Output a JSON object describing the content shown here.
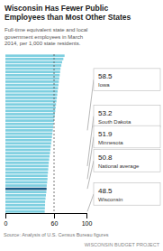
{
  "chart_data": {
    "type": "bar",
    "orientation": "horizontal",
    "title": "Wisconsin Has Fewer Public\nEmployees than Most Other States",
    "subtitle": "Full-time equivalent state and local\ngovernment employees in March\n2014, per 1,000 state residents.",
    "source": "Source: Analysis of U.S. Census Bureau figures",
    "credit": "WISCONSIN BUDGET PROJECT",
    "categories": [
      null,
      null,
      null,
      null,
      null,
      null,
      null,
      null,
      null,
      null,
      null,
      null,
      null,
      null,
      null,
      null,
      null,
      null,
      null,
      null,
      null,
      null,
      null,
      null,
      null,
      null,
      null,
      null,
      null,
      null,
      null,
      null,
      null,
      null,
      null,
      null,
      null,
      null,
      null,
      null,
      null,
      null,
      null,
      null,
      null,
      null,
      null,
      null,
      null
    ],
    "values": [
      73.0,
      71.5,
      70.0,
      69.0,
      68.0,
      67.5,
      67.0,
      66.5,
      66.0,
      65.5,
      65.0,
      64.5,
      64.0,
      63.5,
      63.0,
      62.5,
      62.0,
      61.5,
      61.0,
      60.5,
      60.0,
      59.5,
      59.0,
      58.5,
      58.0,
      57.5,
      57.0,
      56.5,
      56.0,
      55.5,
      55.0,
      54.5,
      54.0,
      53.5,
      53.2,
      52.8,
      52.5,
      52.0,
      51.9,
      51.5,
      51.0,
      50.8,
      50.5,
      50.0,
      49.5,
      49.0,
      48.9,
      48.7,
      48.5
    ],
    "colors": [
      "#7ecfe0",
      "#7ecfe0",
      "#7ecfe0",
      "#7ecfe0",
      "#7ecfe0",
      "#7ecfe0",
      "#7ecfe0",
      "#7ecfe0",
      "#7ecfe0",
      "#7ecfe0",
      "#7ecfe0",
      "#7ecfe0",
      "#7ecfe0",
      "#7ecfe0",
      "#7ecfe0",
      "#7ecfe0",
      "#7ecfe0",
      "#7ecfe0",
      "#7ecfe0",
      "#7ecfe0",
      "#7ecfe0",
      "#7ecfe0",
      "#7ecfe0",
      "#7ecfe0",
      "#7ecfe0",
      "#7ecfe0",
      "#7ecfe0",
      "#7ecfe0",
      "#7ecfe0",
      "#7ecfe0",
      "#7ecfe0",
      "#7ecfe0",
      "#7ecfe0",
      "#7ecfe0",
      "#7ecfe0",
      "#7ecfe0",
      "#7ecfe0",
      "#7ecfe0",
      "#7ecfe0",
      "#7ecfe0",
      "#7ecfe0",
      "#1b5e87",
      "#7ecfe0",
      "#7ecfe0",
      "#7ecfe0",
      "#7ecfe0",
      "#7ecfe0",
      "#7ecfe0",
      "#7ecfe0"
    ],
    "reference_line": 60,
    "xlim": [
      0,
      100
    ],
    "xticks": [
      0,
      60,
      100
    ],
    "grid": false,
    "tick_labels": "x",
    "annotations": [
      {
        "label": "Iowa",
        "value": 58.5,
        "index": 23
      },
      {
        "label": "South Dakota",
        "value": 53.2,
        "index": 34
      },
      {
        "label": "Minnesota",
        "value": 51.9,
        "index": 38
      },
      {
        "label": "National average",
        "value": 50.8,
        "index": 41
      },
      {
        "label": "Wisconsin",
        "value": 48.5,
        "index": 48
      }
    ]
  }
}
